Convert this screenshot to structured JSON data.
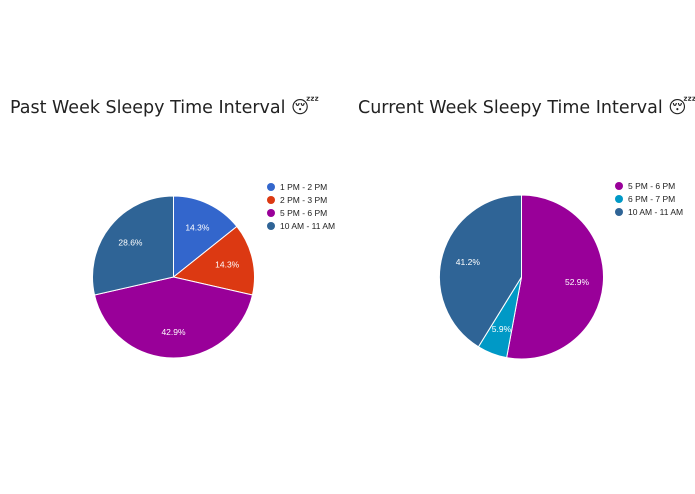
{
  "chart_data": [
    {
      "type": "pie",
      "title": "Past Week Sleepy Time Interval 😴",
      "categories": [
        "1 PM - 2 PM",
        "2 PM - 3 PM",
        "5 PM - 6 PM",
        "10 AM - 11 AM"
      ],
      "values": [
        14.3,
        14.3,
        42.9,
        28.6
      ],
      "value_labels": [
        "14.3%",
        "14.3%",
        "42.9%",
        "28.6%"
      ],
      "colors": [
        "#3366cc",
        "#dc3912",
        "#990099",
        "#2f6496"
      ],
      "legend": "right"
    },
    {
      "type": "pie",
      "title": "Current Week Sleepy Time Interval 😴",
      "categories": [
        "5 PM - 6 PM",
        "6 PM - 7 PM",
        "10 AM - 11 AM"
      ],
      "values": [
        52.9,
        5.9,
        41.2
      ],
      "value_labels": [
        "52.9%",
        "5.9%",
        "41.2%"
      ],
      "colors": [
        "#990099",
        "#0099c6",
        "#2f6496"
      ],
      "legend": "right"
    }
  ]
}
